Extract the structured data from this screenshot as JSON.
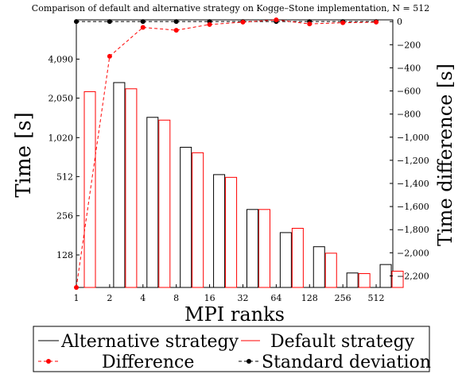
{
  "chart_data": {
    "type": "bar",
    "title": "Comparison of default and alternative strategy on Kogge–Stone implementation, N = 512",
    "xlabel": "MPI ranks",
    "ylabel_left": "Time [s]",
    "ylabel_right": "Time difference [s]",
    "categories": [
      "1",
      "2",
      "4",
      "8",
      "16",
      "32",
      "64",
      "128",
      "256",
      "512"
    ],
    "left_axis": {
      "scale": "log2",
      "ticks": [
        128,
        256,
        512,
        1020,
        2050,
        4090
      ],
      "tick_labels": [
        "128",
        "256",
        "512",
        "1,020",
        "2,050",
        "4,090"
      ],
      "ylim": [
        72,
        8192
      ]
    },
    "right_axis": {
      "scale": "linear",
      "ticks": [
        0,
        -200,
        -400,
        -600,
        -800,
        -1000,
        -1200,
        -1400,
        -1600,
        -1800,
        -2000,
        -2200
      ],
      "tick_labels": [
        "0",
        "−200",
        "−400",
        "−600",
        "−800",
        "−1,000",
        "−1,200",
        "−1,400",
        "−1,600",
        "−1,800",
        "−2,000",
        "−2,200"
      ],
      "ylim": [
        -2300,
        15
      ]
    },
    "series": [
      {
        "name": "Alternative strategy",
        "kind": "bar",
        "axis": "left",
        "color": "#000000",
        "values": [
          null,
          2700,
          1460,
          860,
          530,
          286,
          190,
          148,
          93,
          108
        ]
      },
      {
        "name": "Default strategy",
        "kind": "bar",
        "axis": "left",
        "color": "#ff0000",
        "values": [
          2300,
          2420,
          1390,
          780,
          505,
          286,
          205,
          132,
          92,
          96
        ]
      },
      {
        "name": "Difference",
        "kind": "line",
        "axis": "right",
        "color": "#ff0000",
        "dash": "dashed",
        "values": [
          -2300,
          -300,
          -50,
          -75,
          -25,
          -5,
          15,
          -20,
          -10,
          -5
        ]
      },
      {
        "name": "Standard deviation",
        "kind": "line",
        "axis": "right",
        "color": "#000000",
        "dash": "dashed",
        "values": [
          0,
          0,
          0,
          0,
          0,
          0,
          0,
          0,
          0,
          0
        ]
      }
    ],
    "legend": {
      "placement": "bottom",
      "entries": [
        "Alternative strategy",
        "Default strategy",
        "Difference",
        "Standard deviation"
      ]
    },
    "grid": false
  }
}
